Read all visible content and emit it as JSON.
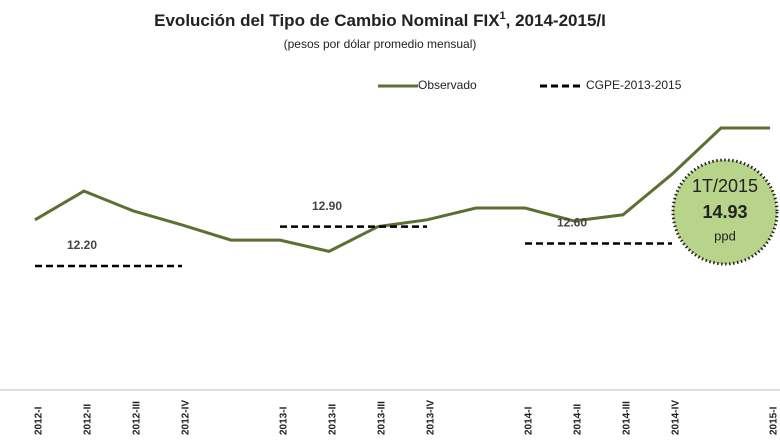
{
  "chart_data": {
    "type": "line",
    "title": [
      "Evolución del Tipo de Cambio Nominal FIX",
      "1",
      ", 2014-2015/I"
    ],
    "subtitle": "(pesos por dólar promedio mensual)",
    "categories": [
      "2012-I",
      "2012-II",
      "2012-III",
      "2012-IV",
      null,
      "2013-I",
      "2013-II",
      "2013-III",
      "2013-IV",
      null,
      "2014-I",
      "2014-II",
      "2014-III",
      "2014-IV",
      null,
      "2015-I"
    ],
    "ylim": [
      10,
      15.2
    ],
    "legend": "top-right",
    "series": [
      {
        "name": "Observado",
        "color": "#5b7032",
        "dash": false,
        "values": [
          13.02,
          13.53,
          13.18,
          12.93,
          12.66,
          12.66,
          12.46,
          12.9,
          13.02,
          13.23,
          13.23,
          13.0,
          13.11,
          13.83,
          14.65,
          14.65
        ]
      },
      {
        "name": "CGPE-2013-2015",
        "color": "#000000",
        "dash": true,
        "values": [
          12.2,
          12.2,
          12.2,
          12.2,
          null,
          12.9,
          12.9,
          12.9,
          12.9,
          null,
          12.6,
          12.6,
          12.6,
          12.6,
          null,
          null
        ],
        "value_labels": [
          null,
          "12.20",
          null,
          null,
          null,
          null,
          "12.90",
          null,
          null,
          null,
          null,
          "12.60",
          null,
          null,
          null,
          null
        ]
      }
    ],
    "callout": {
      "period": "1T/2015",
      "value": 14.93,
      "unit": "ppd"
    }
  }
}
